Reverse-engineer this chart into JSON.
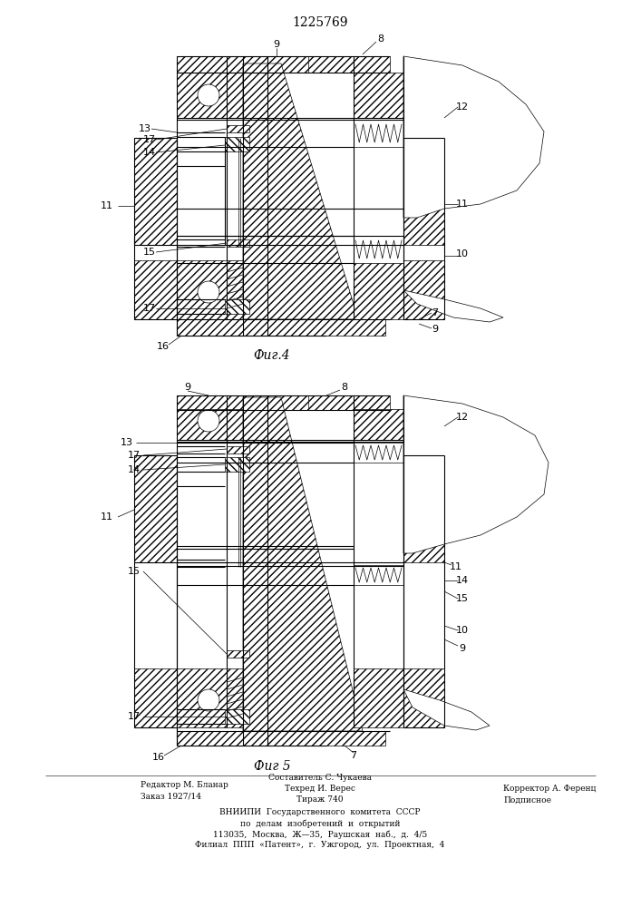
{
  "patent_number": "1225769",
  "fig4_label": "Фиг.4",
  "fig5_label": "Фиг 5",
  "background_color": "#ffffff",
  "line_color": "#000000",
  "footer_lines": [
    "Составитель С. Чукаева",
    "Редактор М. Бланар",
    "Техред И. Верес",
    "Корректор А. Ференц",
    "Заказ 1927/14",
    "Тираж 740",
    "Подписное",
    "ВНИИПИ  Государственного  комитета  СССР",
    "по  делам  изобретений  и  открытий",
    "113035,  Москва,  Ж—35,  Раушская  наб.,  д.  4/5",
    "Филиал  ППП  «Патент»,  г.  Ужгород,  ул.  Проектная,  4"
  ]
}
